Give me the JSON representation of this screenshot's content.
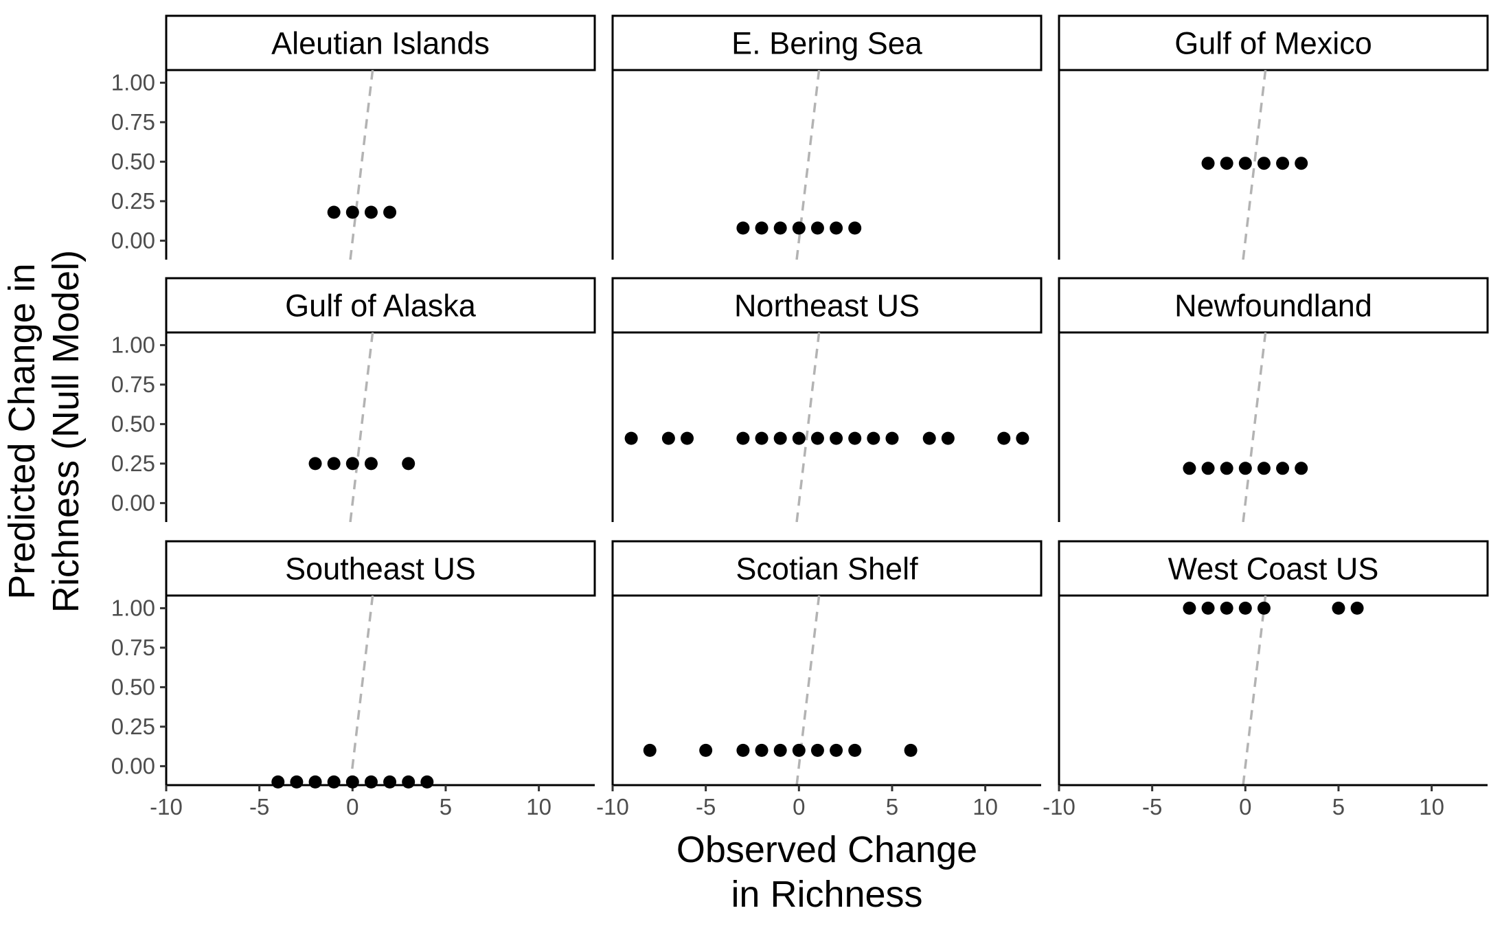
{
  "chart_data": {
    "type": "scatter",
    "xlabel": [
      "Observed Change",
      "in Richness"
    ],
    "ylabel": [
      "Predicted Change in",
      "Richness (Null Model)"
    ],
    "xlim": [
      -10,
      13
    ],
    "ylim": [
      -0.12,
      1.08
    ],
    "xticks": [
      -10,
      -5,
      0,
      5,
      10
    ],
    "xtick_labels": [
      "-10",
      "-5",
      "0",
      "5",
      "10"
    ],
    "yticks": [
      0,
      0.25,
      0.5,
      0.75,
      1.0
    ],
    "ytick_labels": [
      "0.00",
      "0.25",
      "0.50",
      "0.75",
      "1.00"
    ],
    "grid": false,
    "reference_line": {
      "style": "dashed",
      "color": "#b3b3b3",
      "slope": 1,
      "intercept": 0
    },
    "panels": [
      {
        "name": "Aleutian Islands",
        "x": [
          -1,
          0,
          1,
          2
        ],
        "y": 0.18
      },
      {
        "name": "E. Bering Sea",
        "x": [
          -3,
          -2,
          -1,
          0,
          1,
          2,
          3
        ],
        "y": 0.08
      },
      {
        "name": "Gulf of Mexico",
        "x": [
          -2,
          -1,
          0,
          1,
          2,
          3
        ],
        "y": 0.49
      },
      {
        "name": "Gulf of Alaska",
        "x": [
          -2,
          -1,
          0,
          1,
          3
        ],
        "y": 0.25
      },
      {
        "name": "Northeast US",
        "x": [
          -9,
          -7,
          -6,
          -3,
          -2,
          -1,
          0,
          1,
          2,
          3,
          4,
          5,
          7,
          8,
          11,
          12
        ],
        "y": 0.41
      },
      {
        "name": "Newfoundland",
        "x": [
          -3,
          -2,
          -1,
          0,
          1,
          2,
          3
        ],
        "y": 0.22
      },
      {
        "name": "Southeast US",
        "x": [
          -4,
          -3,
          -2,
          -1,
          0,
          1,
          2,
          3,
          4
        ],
        "y": -0.1
      },
      {
        "name": "Scotian Shelf",
        "x": [
          -8,
          -5,
          -3,
          -2,
          -1,
          0,
          1,
          2,
          3,
          6
        ],
        "y": 0.1
      },
      {
        "name": "West Coast US",
        "x": [
          -3,
          -2,
          -1,
          0,
          1,
          5,
          6
        ],
        "y": 1.0
      }
    ]
  }
}
